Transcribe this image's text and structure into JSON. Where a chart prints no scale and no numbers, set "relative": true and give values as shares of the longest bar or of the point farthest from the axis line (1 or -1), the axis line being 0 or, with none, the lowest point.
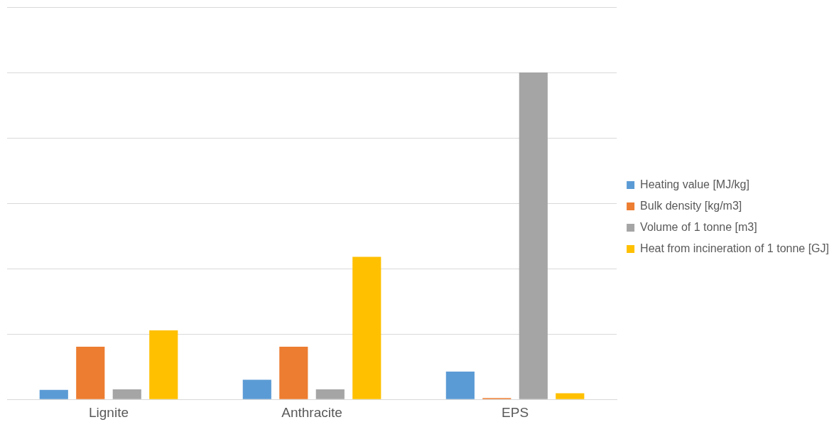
{
  "chart_data": {
    "type": "bar",
    "categories": [
      "Lignite",
      "Anthracite",
      "EPS"
    ],
    "relative": true,
    "grid": "y",
    "legend": "right",
    "series": [
      {
        "name": "Heating value [MJ/kg]",
        "color": "#5b9bd5",
        "values": [
          0.029,
          0.06,
          0.085
        ]
      },
      {
        "name": "Bulk density [kg/m3]",
        "color": "#ed7d31",
        "values": [
          0.161,
          0.161,
          0.004
        ]
      },
      {
        "name": "Volume of 1 tonne [m3]",
        "color": "#a5a5a5",
        "values": [
          0.031,
          0.031,
          1
        ]
      },
      {
        "name": "Heat from incineration of 1 tonne [GJ]",
        "color": "#ffc000",
        "values": [
          0.211,
          0.436,
          0.019
        ]
      }
    ]
  }
}
